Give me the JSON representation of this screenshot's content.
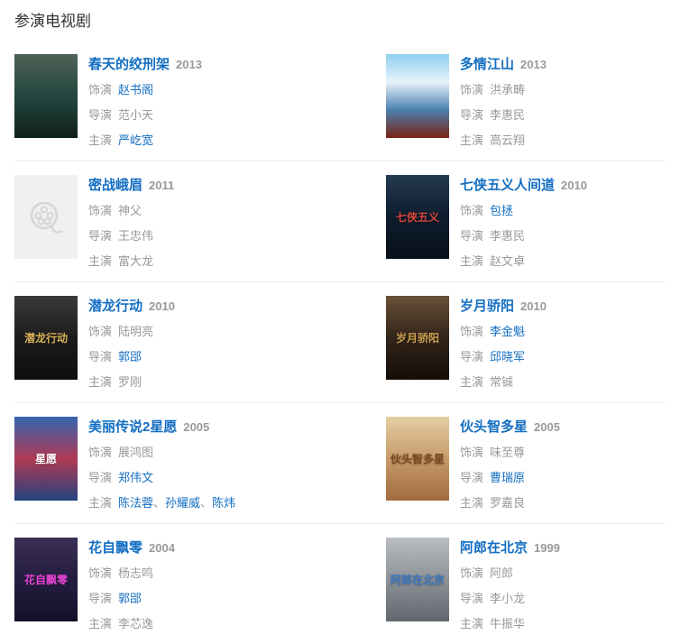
{
  "section": {
    "title": "参演电视剧"
  },
  "colors": {
    "link_blue": "#136ec2",
    "text_gray": "#999999",
    "section_title": "#333333",
    "divider": "#ebebeb",
    "placeholder_bg": "#f0f0f0",
    "placeholder_icon": "#d6d6d6"
  },
  "items": [
    {
      "title": "春天的绞刑架",
      "year": "2013",
      "poster": {
        "kind": "image",
        "colors": [
          "#4f6157",
          "#234740",
          "#10201a"
        ],
        "overlay": "",
        "overlay_color": ""
      },
      "rows": [
        {
          "label": "饰演",
          "values": [
            {
              "text": "赵书阁",
              "link": true
            }
          ]
        },
        {
          "label": "导演",
          "values": [
            {
              "text": "范小天",
              "link": false
            }
          ]
        },
        {
          "label": "主演",
          "values": [
            {
              "text": "严屹宽",
              "link": true
            }
          ]
        }
      ]
    },
    {
      "title": "多情江山",
      "year": "2013",
      "poster": {
        "kind": "image",
        "colors": [
          "#8fd0f0",
          "#e8f4fb",
          "#4a7fae",
          "#7c2315"
        ],
        "overlay": "",
        "overlay_color": ""
      },
      "rows": [
        {
          "label": "饰演",
          "values": [
            {
              "text": "洪承畴",
              "link": false
            }
          ]
        },
        {
          "label": "导演",
          "values": [
            {
              "text": "李惠民",
              "link": false
            }
          ]
        },
        {
          "label": "主演",
          "values": [
            {
              "text": "高云翔",
              "link": false
            }
          ]
        }
      ]
    },
    {
      "title": "密战峨眉",
      "year": "2011",
      "poster": {
        "kind": "placeholder",
        "colors": [],
        "overlay": "",
        "overlay_color": ""
      },
      "rows": [
        {
          "label": "饰演",
          "values": [
            {
              "text": "神父",
              "link": false
            }
          ]
        },
        {
          "label": "导演",
          "values": [
            {
              "text": "王忠伟",
              "link": false
            }
          ]
        },
        {
          "label": "主演",
          "values": [
            {
              "text": "富大龙",
              "link": false
            }
          ]
        }
      ]
    },
    {
      "title": "七侠五义人间道",
      "year": "2010",
      "poster": {
        "kind": "image",
        "colors": [
          "#243a50",
          "#0e1c2e",
          "#081018"
        ],
        "overlay": "七侠五义",
        "overlay_color": "#d8453a"
      },
      "rows": [
        {
          "label": "饰演",
          "values": [
            {
              "text": "包拯",
              "link": true
            }
          ]
        },
        {
          "label": "导演",
          "values": [
            {
              "text": "李惠民",
              "link": false
            }
          ]
        },
        {
          "label": "主演",
          "values": [
            {
              "text": "赵文卓",
              "link": false
            }
          ]
        }
      ]
    },
    {
      "title": "潜龙行动",
      "year": "2010",
      "poster": {
        "kind": "image",
        "colors": [
          "#3a3a3a",
          "#1c1c1c",
          "#0d0d0d"
        ],
        "overlay": "潜龙行动",
        "overlay_color": "#d9b25a"
      },
      "rows": [
        {
          "label": "饰演",
          "values": [
            {
              "text": "陆明亮",
              "link": false
            }
          ]
        },
        {
          "label": "导演",
          "values": [
            {
              "text": "郭郘",
              "link": true
            }
          ]
        },
        {
          "label": "主演",
          "values": [
            {
              "text": "罗刚",
              "link": false
            }
          ]
        }
      ]
    },
    {
      "title": "岁月骄阳",
      "year": "2010",
      "poster": {
        "kind": "image",
        "colors": [
          "#6b5138",
          "#32241a",
          "#140d08"
        ],
        "overlay": "岁月骄阳",
        "overlay_color": "#caa050"
      },
      "rows": [
        {
          "label": "饰演",
          "values": [
            {
              "text": "李金魁",
              "link": true
            }
          ]
        },
        {
          "label": "导演",
          "values": [
            {
              "text": "邱晓军",
              "link": true
            }
          ]
        },
        {
          "label": "主演",
          "values": [
            {
              "text": "常铖",
              "link": false
            }
          ]
        }
      ]
    },
    {
      "title": "美丽传说2星愿",
      "year": "2005",
      "poster": {
        "kind": "image",
        "colors": [
          "#3565ae",
          "#b03a55",
          "#24437f"
        ],
        "overlay": "星愿",
        "overlay_color": "#ffffff"
      },
      "rows": [
        {
          "label": "饰演",
          "values": [
            {
              "text": "展鸿图",
              "link": false
            }
          ]
        },
        {
          "label": "导演",
          "values": [
            {
              "text": "郑伟文",
              "link": true
            }
          ]
        },
        {
          "label": "主演",
          "values": [
            {
              "text": "陈法蓉",
              "link": true
            },
            {
              "text": "、",
              "link": false
            },
            {
              "text": "孙耀威",
              "link": true
            },
            {
              "text": "、",
              "link": false
            },
            {
              "text": "陈炜",
              "link": true
            }
          ]
        }
      ]
    },
    {
      "title": "伙头智多星",
      "year": "2005",
      "poster": {
        "kind": "image",
        "colors": [
          "#e3cfa2",
          "#c89a6a",
          "#a06a40"
        ],
        "overlay": "伙头智多星",
        "overlay_color": "#7a4a1e"
      },
      "rows": [
        {
          "label": "饰演",
          "values": [
            {
              "text": "味至尊",
              "link": false
            }
          ]
        },
        {
          "label": "导演",
          "values": [
            {
              "text": "曹瑞原",
              "link": true
            }
          ]
        },
        {
          "label": "主演",
          "values": [
            {
              "text": "罗嘉良",
              "link": false
            }
          ]
        }
      ]
    },
    {
      "title": "花自飘零",
      "year": "2004",
      "poster": {
        "kind": "image",
        "colors": [
          "#3a2f55",
          "#241d40",
          "#151028"
        ],
        "overlay": "花自飘零",
        "overlay_color": "#e743d4"
      },
      "rows": [
        {
          "label": "饰演",
          "values": [
            {
              "text": "杨志鸣",
              "link": false
            }
          ]
        },
        {
          "label": "导演",
          "values": [
            {
              "text": "郭郘",
              "link": true
            }
          ]
        },
        {
          "label": "主演",
          "values": [
            {
              "text": "李芯逸",
              "link": false
            }
          ]
        }
      ]
    },
    {
      "title": "阿郎在北京",
      "year": "1999",
      "poster": {
        "kind": "image",
        "colors": [
          "#b9bdc1",
          "#8e9398",
          "#5f666c"
        ],
        "overlay": "阿郎在北京",
        "overlay_color": "#3a78c2"
      },
      "rows": [
        {
          "label": "饰演",
          "values": [
            {
              "text": "阿郎",
              "link": false
            }
          ]
        },
        {
          "label": "导演",
          "values": [
            {
              "text": "李小龙",
              "link": false
            }
          ]
        },
        {
          "label": "主演",
          "values": [
            {
              "text": "牛振华",
              "link": false
            }
          ]
        }
      ]
    }
  ]
}
